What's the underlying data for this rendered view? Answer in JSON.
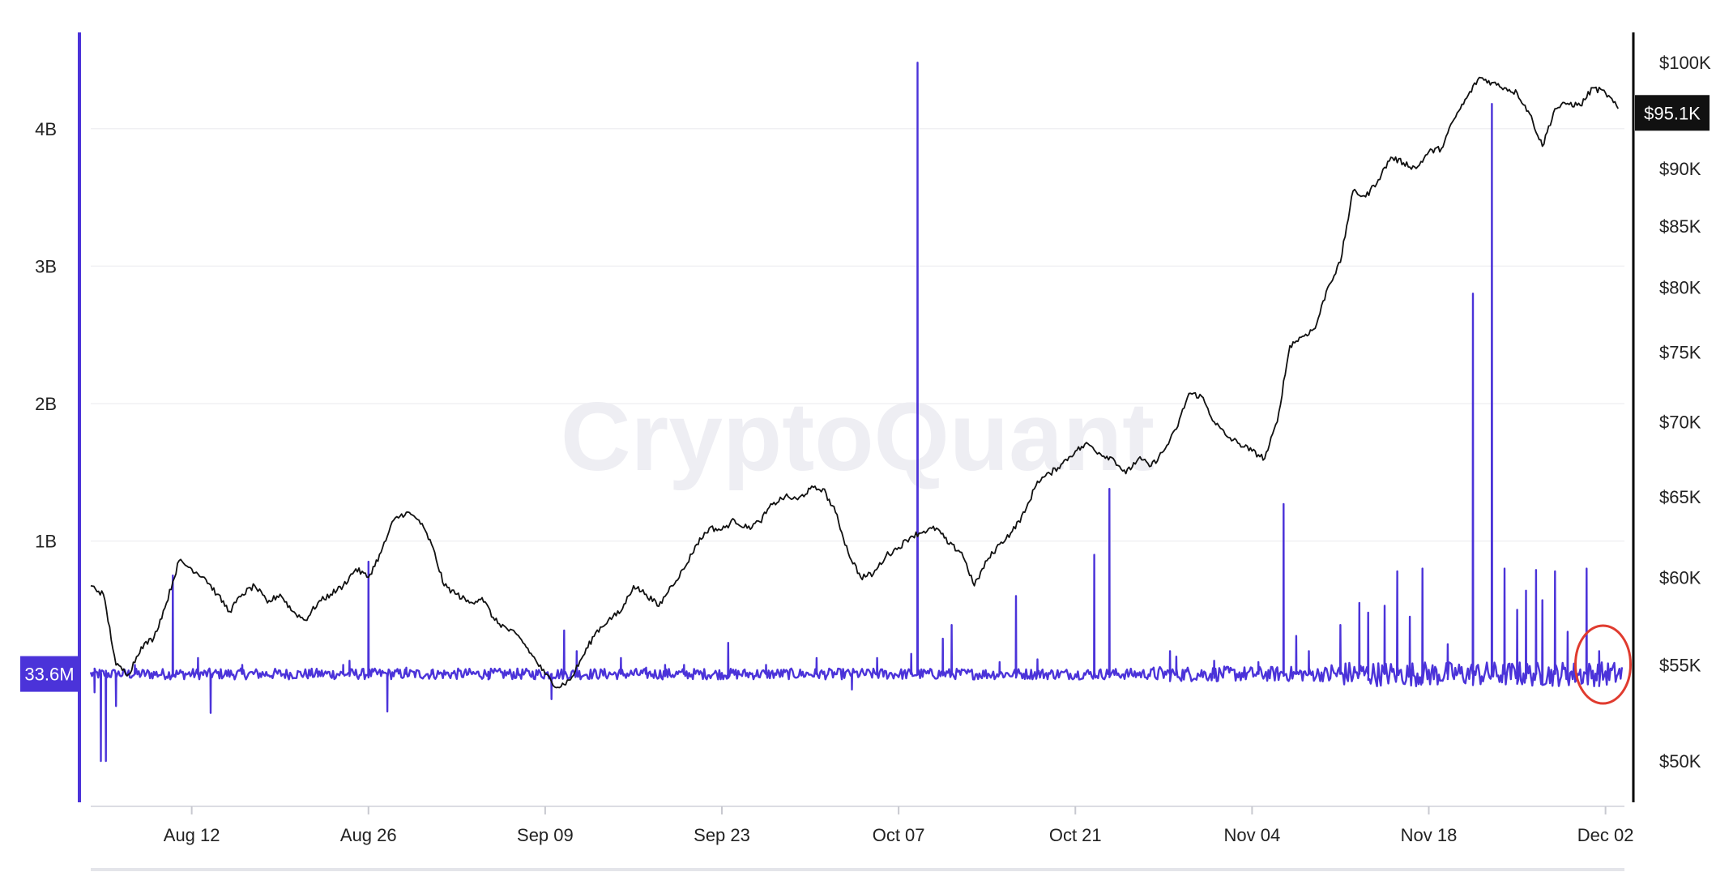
{
  "chart_data": {
    "type": "line",
    "watermark": "CryptoQuant",
    "x_ticks": [
      "Aug 12",
      "Aug 26",
      "Sep 09",
      "Sep 23",
      "Oct 07",
      "Oct 21",
      "Nov 04",
      "Nov 18",
      "Dec 02"
    ],
    "left_axis": {
      "ticks": [
        "1B",
        "2B",
        "3B",
        "4B"
      ],
      "tick_values": [
        1000000000,
        2000000000,
        3000000000,
        4000000000
      ],
      "range": [
        -900000000,
        4700000000
      ]
    },
    "right_axis": {
      "ticks": [
        "$50K",
        "$55K",
        "$60K",
        "$65K",
        "$70K",
        "$75K",
        "$80K",
        "$85K",
        "$90K",
        "$95.1K",
        "$100K"
      ],
      "tick_values": [
        50000,
        55000,
        60000,
        65000,
        70000,
        75000,
        80000,
        85000,
        90000,
        95100,
        100000
      ],
      "scale": "log",
      "range": [
        48000,
        103000
      ]
    },
    "latest_values": {
      "left": "33.6M",
      "right": "$95.1K"
    },
    "colors": {
      "volume_series": "#4b33d9",
      "price_series": "#111111",
      "highlight_circle": "#e03b2f"
    },
    "series": [
      {
        "axis": "right",
        "color": "#111111",
        "keypoints_day_price": [
          [
            0,
            59500
          ],
          [
            1,
            59000
          ],
          [
            2,
            55000
          ],
          [
            3,
            54500
          ],
          [
            4,
            56000
          ],
          [
            5,
            56500
          ],
          [
            6,
            58500
          ],
          [
            7,
            61000
          ],
          [
            8,
            60500
          ],
          [
            9,
            60000
          ],
          [
            10,
            59000
          ],
          [
            11,
            58000
          ],
          [
            12,
            59000
          ],
          [
            13,
            59500
          ],
          [
            14,
            58500
          ],
          [
            15,
            59000
          ],
          [
            16,
            58000
          ],
          [
            17,
            57500
          ],
          [
            18,
            58500
          ],
          [
            19,
            59000
          ],
          [
            20,
            59500
          ],
          [
            21,
            60500
          ],
          [
            22,
            60000
          ],
          [
            23,
            61500
          ],
          [
            24,
            63500
          ],
          [
            25,
            64000
          ],
          [
            26,
            63500
          ],
          [
            27,
            62000
          ],
          [
            28,
            59500
          ],
          [
            29,
            59000
          ],
          [
            30,
            58500
          ],
          [
            31,
            58800
          ],
          [
            32,
            57500
          ],
          [
            33,
            57000
          ],
          [
            34,
            56500
          ],
          [
            35,
            55500
          ],
          [
            36,
            54500
          ],
          [
            37,
            53800
          ],
          [
            38,
            54200
          ],
          [
            39,
            55500
          ],
          [
            40,
            56800
          ],
          [
            41,
            57500
          ],
          [
            42,
            58000
          ],
          [
            43,
            59500
          ],
          [
            44,
            59000
          ],
          [
            45,
            58300
          ],
          [
            46,
            59500
          ],
          [
            47,
            60500
          ],
          [
            48,
            62000
          ],
          [
            49,
            63000
          ],
          [
            50,
            62900
          ],
          [
            51,
            63500
          ],
          [
            52,
            63000
          ],
          [
            53,
            63400
          ],
          [
            54,
            64500
          ],
          [
            55,
            65000
          ],
          [
            56,
            64800
          ],
          [
            57,
            65500
          ],
          [
            58,
            65500
          ],
          [
            59,
            64000
          ],
          [
            60,
            61500
          ],
          [
            61,
            60000
          ],
          [
            62,
            60200
          ],
          [
            63,
            61300
          ],
          [
            64,
            61800
          ],
          [
            65,
            62500
          ],
          [
            66,
            62800
          ],
          [
            67,
            63000
          ],
          [
            68,
            62000
          ],
          [
            69,
            61500
          ],
          [
            70,
            59500
          ],
          [
            71,
            61000
          ],
          [
            72,
            62000
          ],
          [
            73,
            62800
          ],
          [
            74,
            64000
          ],
          [
            75,
            66000
          ],
          [
            76,
            66500
          ],
          [
            77,
            67200
          ],
          [
            78,
            68000
          ],
          [
            79,
            68500
          ],
          [
            80,
            67800
          ],
          [
            81,
            67500
          ],
          [
            82,
            66500
          ],
          [
            83,
            67500
          ],
          [
            84,
            67000
          ],
          [
            85,
            68000
          ],
          [
            86,
            69500
          ],
          [
            87,
            72000
          ],
          [
            88,
            71800
          ],
          [
            89,
            70000
          ],
          [
            90,
            69000
          ],
          [
            91,
            68500
          ],
          [
            92,
            68000
          ],
          [
            93,
            67500
          ],
          [
            94,
            70000
          ],
          [
            95,
            75500
          ],
          [
            96,
            76200
          ],
          [
            97,
            76800
          ],
          [
            98,
            80000
          ],
          [
            99,
            82000
          ],
          [
            100,
            88000
          ],
          [
            101,
            87500
          ],
          [
            102,
            89000
          ],
          [
            103,
            91000
          ],
          [
            104,
            90500
          ],
          [
            105,
            90000
          ],
          [
            106,
            91500
          ],
          [
            107,
            91800
          ],
          [
            108,
            94500
          ],
          [
            109,
            96500
          ],
          [
            110,
            98500
          ],
          [
            111,
            98000
          ],
          [
            112,
            97500
          ],
          [
            113,
            97000
          ],
          [
            114,
            95000
          ],
          [
            115,
            92000
          ],
          [
            116,
            95500
          ],
          [
            117,
            96000
          ],
          [
            118,
            95800
          ],
          [
            119,
            97500
          ],
          [
            120,
            97000
          ],
          [
            121,
            95500
          ]
        ]
      },
      {
        "axis": "left",
        "color": "#4b33d9",
        "baseline": 33600000,
        "spikes_day_value": [
          [
            0.3,
            -100000000
          ],
          [
            0.8,
            -600000000
          ],
          [
            1.2,
            -600000000
          ],
          [
            2.0,
            -200000000
          ],
          [
            3.5,
            100000000
          ],
          [
            6.5,
            750000000
          ],
          [
            8.5,
            150000000
          ],
          [
            9.5,
            -250000000
          ],
          [
            12,
            100000000
          ],
          [
            18,
            50000000
          ],
          [
            20,
            100000000
          ],
          [
            20.5,
            130000000
          ],
          [
            22,
            850000000
          ],
          [
            23.5,
            -240000000
          ],
          [
            25,
            80000000
          ],
          [
            27,
            60000000
          ],
          [
            31.5,
            50000000
          ],
          [
            36.5,
            -150000000
          ],
          [
            37.5,
            350000000
          ],
          [
            38.5,
            200000000
          ],
          [
            42,
            150000000
          ],
          [
            44,
            80000000
          ],
          [
            45.5,
            100000000
          ],
          [
            47,
            100000000
          ],
          [
            50.5,
            260000000
          ],
          [
            53.5,
            100000000
          ],
          [
            57.5,
            150000000
          ],
          [
            60.3,
            -80000000
          ],
          [
            62.3,
            150000000
          ],
          [
            65,
            180000000
          ],
          [
            65.5,
            4480000000
          ],
          [
            67.5,
            290000000
          ],
          [
            68.2,
            390000000
          ],
          [
            72,
            120000000
          ],
          [
            73.3,
            600000000
          ],
          [
            75,
            140000000
          ],
          [
            79.5,
            900000000
          ],
          [
            80.7,
            1380000000
          ],
          [
            85.5,
            200000000
          ],
          [
            86,
            160000000
          ],
          [
            89,
            130000000
          ],
          [
            92.5,
            120000000
          ],
          [
            94.5,
            1270000000
          ],
          [
            95.5,
            310000000
          ],
          [
            96.5,
            200000000
          ],
          [
            99,
            390000000
          ],
          [
            100.5,
            550000000
          ],
          [
            101.2,
            480000000
          ],
          [
            102.5,
            530000000
          ],
          [
            103.5,
            780000000
          ],
          [
            104.5,
            450000000
          ],
          [
            105.5,
            800000000
          ],
          [
            107.5,
            250000000
          ],
          [
            109.5,
            2800000000
          ],
          [
            111,
            4180000000
          ],
          [
            112,
            800000000
          ],
          [
            113,
            500000000
          ],
          [
            113.7,
            640000000
          ],
          [
            114.5,
            790000000
          ],
          [
            115,
            570000000
          ],
          [
            116,
            780000000
          ],
          [
            117,
            340000000
          ],
          [
            118.5,
            800000000
          ],
          [
            119.5,
            200000000
          ]
        ]
      }
    ],
    "annotation": {
      "type": "circle",
      "position": "near latest volume",
      "color": "#e03b2f"
    },
    "grid": true,
    "legend": "none"
  }
}
